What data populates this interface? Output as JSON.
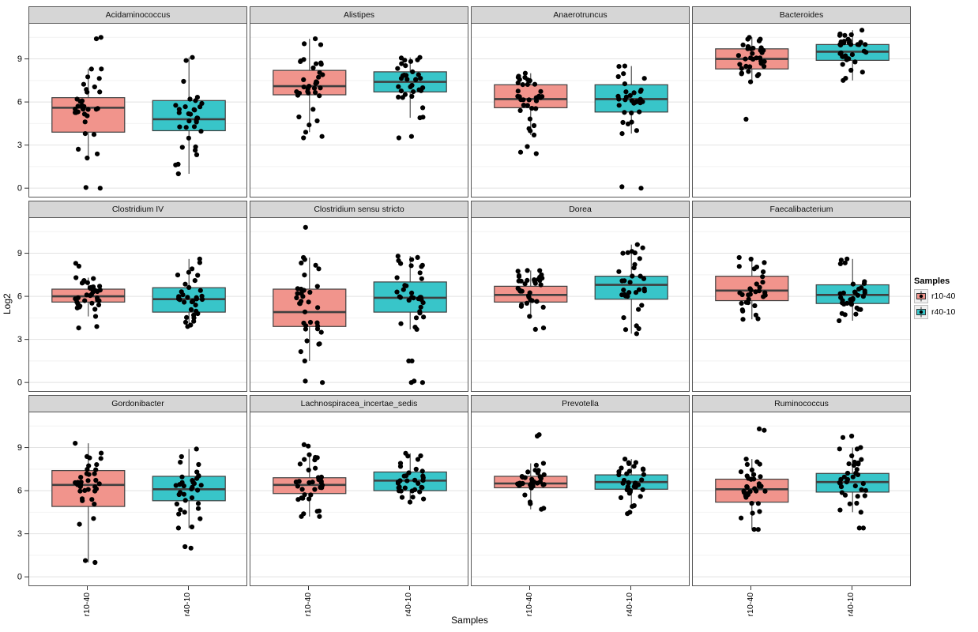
{
  "chart_data": {
    "type": "boxplot",
    "facet_layout": {
      "rows": 3,
      "cols": 4
    },
    "title": "",
    "xlabel": "Samples",
    "ylabel": "Log2",
    "x_categories": [
      "r10-40",
      "r40-10"
    ],
    "y_ticks": [
      0,
      3,
      6,
      9
    ],
    "y_minor_ticks": [
      1.5,
      4.5,
      7.5,
      10.5
    ],
    "ylim": [
      -0.65,
      11.45
    ],
    "grid": true,
    "legend": {
      "title": "Samples",
      "position": "right",
      "items": [
        {
          "label": "r10-40",
          "color": "#F1948C"
        },
        {
          "label": "r40-10",
          "color": "#38C5C9"
        }
      ]
    },
    "panels": [
      {
        "title": "Acidaminococcus",
        "groups": [
          {
            "sample": "r10-40",
            "stats": {
              "low": 2.1,
              "q1": 3.9,
              "median": 5.6,
              "q3": 6.3,
              "high": 8.3
            },
            "outliers": [
              10.5,
              10.4,
              0.05,
              0
            ],
            "n_points": 32
          },
          {
            "sample": "r40-10",
            "stats": {
              "low": 1.0,
              "q1": 4.0,
              "median": 4.8,
              "q3": 6.1,
              "high": 9.1
            },
            "outliers": [],
            "n_points": 33
          }
        ]
      },
      {
        "title": "Alistipes",
        "groups": [
          {
            "sample": "r10-40",
            "stats": {
              "low": 3.9,
              "q1": 6.5,
              "median": 7.1,
              "q3": 8.2,
              "high": 10.4
            },
            "outliers": [
              3.6,
              3.5
            ],
            "n_points": 34
          },
          {
            "sample": "r40-10",
            "stats": {
              "low": 4.9,
              "q1": 6.7,
              "median": 7.4,
              "q3": 8.1,
              "high": 9.1
            },
            "outliers": [
              3.6,
              3.5
            ],
            "n_points": 34
          }
        ]
      },
      {
        "title": "Anaerotruncus",
        "groups": [
          {
            "sample": "r10-40",
            "stats": {
              "low": 3.7,
              "q1": 5.6,
              "median": 6.2,
              "q3": 7.2,
              "high": 8.0
            },
            "outliers": [
              2.9,
              2.5,
              2.4
            ],
            "n_points": 34
          },
          {
            "sample": "r40-10",
            "stats": {
              "low": 3.8,
              "q1": 5.3,
              "median": 6.2,
              "q3": 7.2,
              "high": 8.5
            },
            "outliers": [
              0.1,
              0
            ],
            "n_points": 33
          }
        ]
      },
      {
        "title": "Bacteroides",
        "groups": [
          {
            "sample": "r10-40",
            "stats": {
              "low": 7.4,
              "q1": 8.3,
              "median": 9.0,
              "q3": 9.7,
              "high": 10.5
            },
            "outliers": [
              4.8
            ],
            "n_points": 36
          },
          {
            "sample": "r40-10",
            "stats": {
              "low": 7.5,
              "q1": 8.9,
              "median": 9.5,
              "q3": 10.0,
              "high": 11.0
            },
            "outliers": [],
            "n_points": 36
          }
        ]
      },
      {
        "title": "Clostridium IV",
        "groups": [
          {
            "sample": "r10-40",
            "stats": {
              "low": 4.6,
              "q1": 5.6,
              "median": 6.0,
              "q3": 6.5,
              "high": 7.3
            },
            "outliers": [
              8.3,
              8.1,
              3.9,
              3.8
            ],
            "n_points": 33
          },
          {
            "sample": "r40-10",
            "stats": {
              "low": 4.0,
              "q1": 4.9,
              "median": 5.8,
              "q3": 6.6,
              "high": 8.6
            },
            "outliers": [
              3.9
            ],
            "n_points": 34
          }
        ]
      },
      {
        "title": "Clostridium sensu stricto",
        "groups": [
          {
            "sample": "r10-40",
            "stats": {
              "low": 1.5,
              "q1": 3.9,
              "median": 4.9,
              "q3": 6.5,
              "high": 8.7
            },
            "outliers": [
              10.8,
              0.1,
              0
            ],
            "n_points": 34
          },
          {
            "sample": "r40-10",
            "stats": {
              "low": 3.7,
              "q1": 4.9,
              "median": 5.9,
              "q3": 7.0,
              "high": 8.8
            },
            "outliers": [
              1.5,
              1.5,
              0.1,
              0,
              0
            ],
            "n_points": 34
          }
        ]
      },
      {
        "title": "Dorea",
        "groups": [
          {
            "sample": "r10-40",
            "stats": {
              "low": 4.6,
              "q1": 5.6,
              "median": 6.1,
              "q3": 6.7,
              "high": 7.8
            },
            "outliers": [
              3.8,
              3.7
            ],
            "n_points": 33
          },
          {
            "sample": "r40-10",
            "stats": {
              "low": 3.4,
              "q1": 5.8,
              "median": 6.8,
              "q3": 7.4,
              "high": 9.6
            },
            "outliers": [],
            "n_points": 33
          }
        ]
      },
      {
        "title": "Faecalibacterium",
        "groups": [
          {
            "sample": "r10-40",
            "stats": {
              "low": 4.4,
              "q1": 5.7,
              "median": 6.4,
              "q3": 7.4,
              "high": 8.7
            },
            "outliers": [],
            "n_points": 32
          },
          {
            "sample": "r40-10",
            "stats": {
              "low": 4.3,
              "q1": 5.5,
              "median": 6.1,
              "q3": 6.8,
              "high": 8.6
            },
            "outliers": [],
            "n_points": 34
          }
        ]
      },
      {
        "title": "Gordonibacter",
        "groups": [
          {
            "sample": "r10-40",
            "stats": {
              "low": 1.0,
              "q1": 4.9,
              "median": 6.4,
              "q3": 7.4,
              "high": 9.3
            },
            "outliers": [],
            "n_points": 36
          },
          {
            "sample": "r40-10",
            "stats": {
              "low": 3.4,
              "q1": 5.3,
              "median": 6.1,
              "q3": 7.0,
              "high": 8.9
            },
            "outliers": [
              2.1,
              2.0
            ],
            "n_points": 34
          }
        ]
      },
      {
        "title": "Lachnospiracea_incertae_sedis",
        "groups": [
          {
            "sample": "r10-40",
            "stats": {
              "low": 4.2,
              "q1": 5.8,
              "median": 6.4,
              "q3": 6.9,
              "high": 8.5
            },
            "outliers": [
              9.2,
              9.1
            ],
            "n_points": 36
          },
          {
            "sample": "r40-10",
            "stats": {
              "low": 5.2,
              "q1": 6.0,
              "median": 6.7,
              "q3": 7.3,
              "high": 8.6
            },
            "outliers": [],
            "n_points": 34
          }
        ]
      },
      {
        "title": "Prevotella",
        "groups": [
          {
            "sample": "r10-40",
            "stats": {
              "low": 4.7,
              "q1": 6.2,
              "median": 6.5,
              "q3": 7.0,
              "high": 7.9
            },
            "outliers": [
              9.9,
              9.8
            ],
            "n_points": 34
          },
          {
            "sample": "r40-10",
            "stats": {
              "low": 4.9,
              "q1": 6.1,
              "median": 6.6,
              "q3": 7.1,
              "high": 8.2
            },
            "outliers": [
              4.5,
              4.4
            ],
            "n_points": 34
          }
        ]
      },
      {
        "title": "Ruminococcus",
        "groups": [
          {
            "sample": "r10-40",
            "stats": {
              "low": 3.3,
              "q1": 5.2,
              "median": 6.1,
              "q3": 6.8,
              "high": 8.2
            },
            "outliers": [
              10.3,
              10.2
            ],
            "n_points": 34
          },
          {
            "sample": "r40-10",
            "stats": {
              "low": 4.5,
              "q1": 5.9,
              "median": 6.6,
              "q3": 7.2,
              "high": 9.0
            },
            "outliers": [
              9.8,
              9.7,
              3.4,
              3.4
            ],
            "n_points": 34
          }
        ]
      }
    ]
  }
}
